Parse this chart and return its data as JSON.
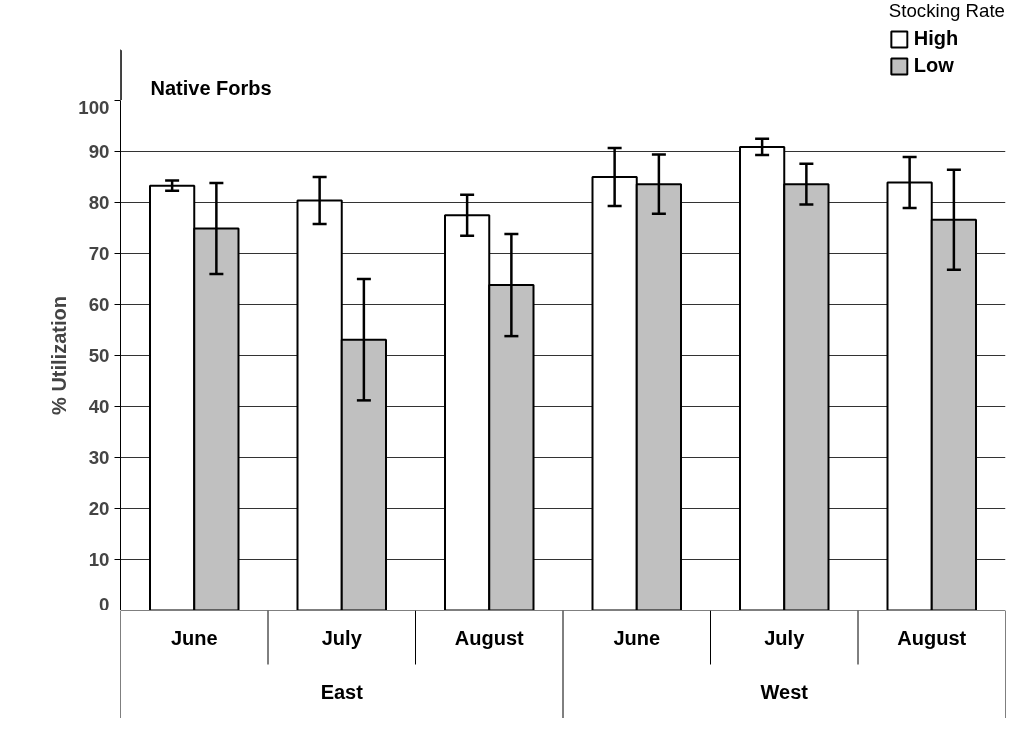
{
  "chart_data": {
    "type": "bar",
    "title": "Native Forbs",
    "categories": [
      "June",
      "July",
      "August",
      "June",
      "July",
      "August"
    ],
    "series": [
      {
        "name": "High",
        "color": "#ffffff",
        "values": [
          83.3,
          80.4,
          77.5,
          85.0,
          90.9,
          83.9
        ],
        "errors": [
          1.0,
          4.6,
          4.0,
          5.7,
          1.6,
          5.0
        ]
      },
      {
        "name": "Low",
        "color": "#c0c0c0",
        "values": [
          74.9,
          53.1,
          63.8,
          83.6,
          83.6,
          76.6
        ],
        "errors": [
          8.9,
          11.9,
          10.0,
          5.8,
          4.0,
          9.8
        ]
      }
    ],
    "ylabel": "% Utilization",
    "legend_title": "Stocking Rate",
    "annotations": [
      "East",
      "West"
    ],
    "ylim": [
      0,
      100
    ],
    "yticks": [
      0,
      10,
      20,
      30,
      40,
      50,
      60,
      70,
      80,
      90,
      100
    ],
    "grid": "y",
    "legend": "top right"
  }
}
